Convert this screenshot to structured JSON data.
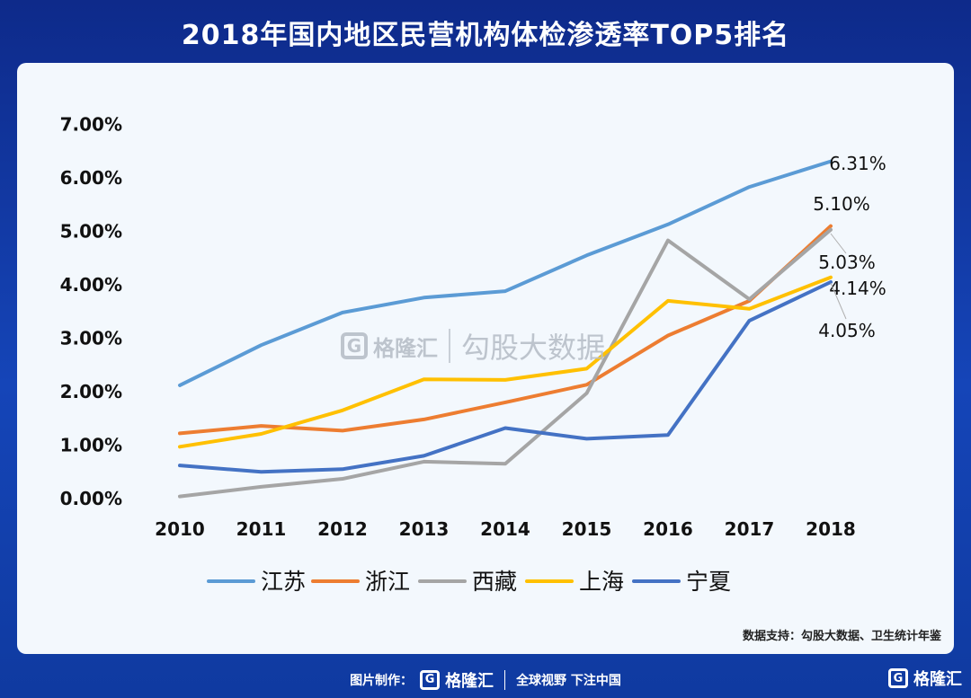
{
  "title": "2018年国内地区民营机构体检渗透率TOP5排名",
  "source": "数据支持：勾股大数据、卫生统计年鉴",
  "watermark": {
    "logo_letter": "G",
    "brand": "格隆汇",
    "name": "勾股大数据"
  },
  "footer": {
    "made_by": "图片制作：",
    "logo_letter": "G",
    "brand": "格隆汇",
    "slogan": "全球视野 下注中国"
  },
  "corner": {
    "logo_letter": "G",
    "brand": "格隆汇"
  },
  "chart_data": {
    "type": "line",
    "x": [
      "2010",
      "2011",
      "2012",
      "2013",
      "2014",
      "2015",
      "2016",
      "2017",
      "2018"
    ],
    "ylim": [
      0,
      7
    ],
    "yticks": [
      "0.00%",
      "1.00%",
      "2.00%",
      "3.00%",
      "4.00%",
      "5.00%",
      "6.00%",
      "7.00%"
    ],
    "grid": false,
    "legend": "bottom",
    "series": [
      {
        "name": "江苏",
        "color": "#5b9bd5",
        "values": [
          2.12,
          2.87,
          3.48,
          3.76,
          3.88,
          4.55,
          5.13,
          5.83,
          6.31
        ]
      },
      {
        "name": "浙江",
        "color": "#ed7d31",
        "values": [
          1.22,
          1.36,
          1.27,
          1.48,
          1.8,
          2.13,
          3.05,
          3.7,
          5.1
        ]
      },
      {
        "name": "西藏",
        "color": "#a5a5a5",
        "values": [
          0.04,
          0.22,
          0.37,
          0.69,
          0.65,
          1.97,
          4.83,
          3.73,
          5.03
        ]
      },
      {
        "name": "上海",
        "color": "#ffc000",
        "values": [
          0.97,
          1.21,
          1.65,
          2.23,
          2.22,
          2.43,
          3.7,
          3.55,
          4.14
        ]
      },
      {
        "name": "宁夏",
        "color": "#4472c4",
        "values": [
          0.62,
          0.5,
          0.55,
          0.8,
          1.32,
          1.12,
          1.19,
          3.33,
          4.05
        ]
      }
    ],
    "data_labels": [
      "6.31%",
      "5.10%",
      "5.03%",
      "4.14%",
      "4.05%"
    ]
  }
}
